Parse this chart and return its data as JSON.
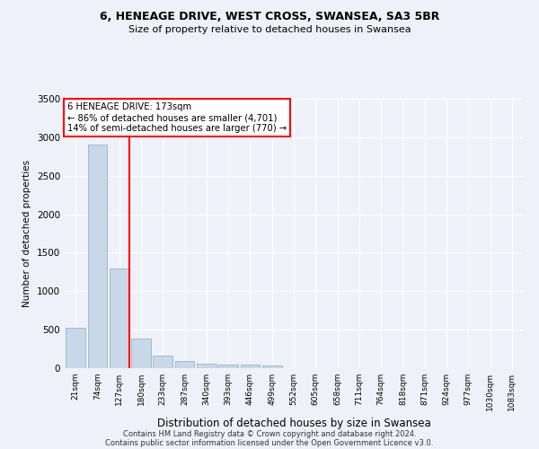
{
  "title1": "6, HENEAGE DRIVE, WEST CROSS, SWANSEA, SA3 5BR",
  "title2": "Size of property relative to detached houses in Swansea",
  "xlabel": "Distribution of detached houses by size in Swansea",
  "ylabel": "Number of detached properties",
  "categories": [
    "21sqm",
    "74sqm",
    "127sqm",
    "180sqm",
    "233sqm",
    "287sqm",
    "340sqm",
    "393sqm",
    "446sqm",
    "499sqm",
    "552sqm",
    "605sqm",
    "658sqm",
    "711sqm",
    "764sqm",
    "818sqm",
    "871sqm",
    "924sqm",
    "977sqm",
    "1030sqm",
    "1083sqm"
  ],
  "values": [
    530,
    2900,
    1300,
    390,
    160,
    90,
    60,
    50,
    50,
    30,
    0,
    0,
    0,
    0,
    0,
    0,
    0,
    0,
    0,
    0,
    0
  ],
  "bar_color": "#c8d8e8",
  "bar_edge_color": "#a0b8d0",
  "red_line_bar_index": 2,
  "annotation_text_line1": "6 HENEAGE DRIVE: 173sqm",
  "annotation_text_line2": "← 86% of detached houses are smaller (4,701)",
  "annotation_text_line3": "14% of semi-detached houses are larger (770) →",
  "ylim": [
    0,
    3500
  ],
  "yticks": [
    0,
    500,
    1000,
    1500,
    2000,
    2500,
    3000,
    3500
  ],
  "bg_color": "#eef2f8",
  "footer1": "Contains HM Land Registry data © Crown copyright and database right 2024.",
  "footer2": "Contains public sector information licensed under the Open Government Licence v3.0."
}
